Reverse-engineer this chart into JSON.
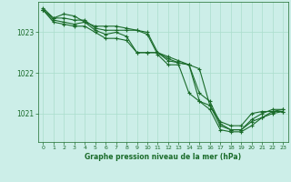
{
  "background_color": "#cceee8",
  "grid_color": "#aaddcc",
  "line_color": "#1a6b2a",
  "xlabel": "Graphe pression niveau de la mer (hPa)",
  "yticks": [
    1021,
    1022,
    1023
  ],
  "xticks": [
    0,
    1,
    2,
    3,
    4,
    5,
    6,
    7,
    8,
    9,
    10,
    11,
    12,
    13,
    14,
    15,
    16,
    17,
    18,
    19,
    20,
    21,
    22,
    23
  ],
  "ylim": [
    1020.3,
    1023.75
  ],
  "xlim": [
    -0.5,
    23.5
  ],
  "series": [
    [
      1023.6,
      1023.35,
      1023.45,
      1023.4,
      1023.25,
      1023.15,
      1023.15,
      1023.15,
      1023.1,
      1023.05,
      1023.0,
      1022.5,
      1022.35,
      1022.25,
      1022.2,
      1022.1,
      1021.2,
      1020.8,
      1020.7,
      1020.7,
      1021.0,
      1021.05,
      1021.05,
      1021.1
    ],
    [
      1023.55,
      1023.3,
      1023.25,
      1023.2,
      1023.25,
      1023.05,
      1022.95,
      1023.0,
      1022.9,
      1022.5,
      1022.5,
      1022.5,
      1022.3,
      1022.25,
      1022.2,
      1021.5,
      1021.3,
      1020.75,
      1020.6,
      1020.6,
      1020.85,
      1021.0,
      1021.1,
      1021.1
    ],
    [
      1023.55,
      1023.35,
      1023.35,
      1023.3,
      1023.3,
      1023.1,
      1023.05,
      1023.05,
      1023.05,
      1023.05,
      1022.95,
      1022.45,
      1022.2,
      1022.2,
      1021.5,
      1021.3,
      1021.2,
      1020.7,
      1020.6,
      1020.6,
      1020.8,
      1020.9,
      1021.05,
      1021.05
    ],
    [
      1023.55,
      1023.25,
      1023.2,
      1023.15,
      1023.15,
      1023.0,
      1022.85,
      1022.85,
      1022.8,
      1022.5,
      1022.5,
      1022.5,
      1022.4,
      1022.3,
      1022.2,
      1021.3,
      1021.1,
      1020.6,
      1020.55,
      1020.55,
      1020.7,
      1020.9,
      1021.0,
      1021.05
    ]
  ],
  "xlabel_fontsize": 5.5,
  "xlabel_fontweight": "bold",
  "ytick_fontsize": 5.5,
  "xtick_fontsize": 4.5,
  "linewidth": 0.8,
  "markersize": 3.0
}
